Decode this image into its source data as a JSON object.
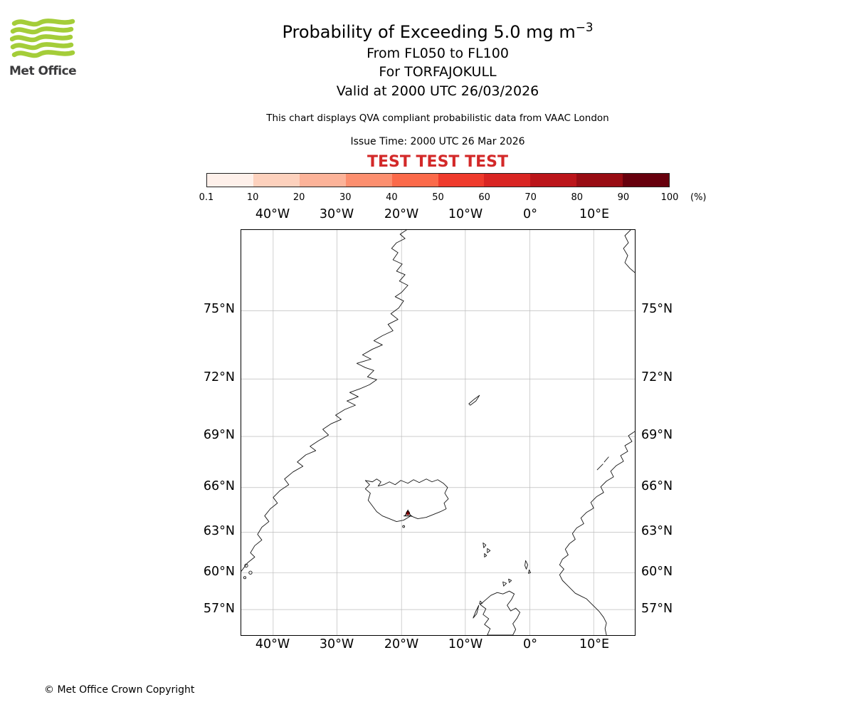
{
  "logo": {
    "text": "Met Office"
  },
  "header": {
    "title_main": "Probability of Exceeding 5.0 mg m",
    "title_sup": "−3",
    "line_flight_levels": "From FL050 to FL100",
    "line_volcano": "For TORFAJOKULL",
    "line_valid": "Valid at 2000 UTC 26/03/2026",
    "qva_note": "This chart displays QVA compliant probabilistic data from VAAC London",
    "issue_time": "Issue Time: 2000 UTC 26 Mar 2026",
    "test_banner": "TEST TEST TEST"
  },
  "colorbar": {
    "ticks": [
      "0.1",
      "10",
      "20",
      "30",
      "40",
      "50",
      "60",
      "70",
      "80",
      "90",
      "100"
    ],
    "unit": "(%)",
    "colors": [
      "#fef0ea",
      "#fdd1bd",
      "#fcb399",
      "#fc8f6f",
      "#fb6a4a",
      "#ef3b2c",
      "#d92523",
      "#bb151a",
      "#980c13",
      "#67000d"
    ]
  },
  "map": {
    "lon_labels": [
      "40°W",
      "30°W",
      "20°W",
      "10°W",
      "0°",
      "10°E"
    ],
    "lat_labels": [
      "75°N",
      "72°N",
      "69°N",
      "66°N",
      "63°N",
      "60°N",
      "57°N"
    ]
  },
  "colors": {
    "test_banner": "#d32929",
    "logo_green": "#a4cd39",
    "volcano_marker": "#8b0000"
  },
  "footer": {
    "copyright": "© Met Office Crown Copyright"
  }
}
